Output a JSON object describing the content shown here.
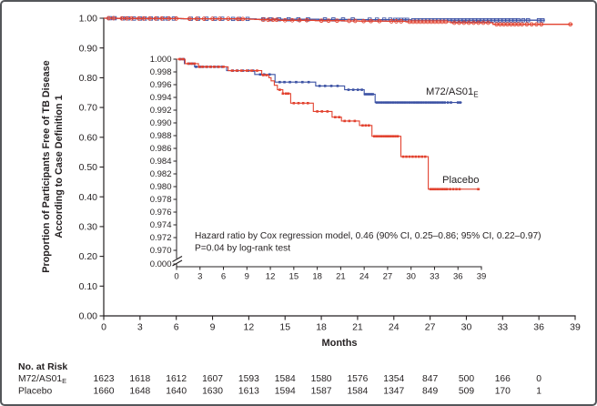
{
  "figure": {
    "y_axis_label_line1": "Proportion of Participants Free of TB Disease",
    "y_axis_label_line2": "According to Case Definition 1",
    "x_axis_label": "Months"
  },
  "annotation": {
    "line1": "Hazard ratio by Cox regression model, 0.46 (90% CI, 0.25–0.86; 95% CI, 0.22–0.97)",
    "line2": "P=0.04 by log-rank test"
  },
  "series_labels": {
    "vaccine": {
      "text": "M72/AS01",
      "sub": "E"
    },
    "placebo": {
      "text": "Placebo",
      "sub": ""
    }
  },
  "colors": {
    "vaccine": "#3c52a4",
    "placebo": "#e2422f",
    "axis": "#231f20"
  },
  "chart_data": {
    "type": "line",
    "subtype": "kaplan-meier-step",
    "x_label": "Months",
    "main_axis": {
      "x_ticks": [
        0,
        3,
        6,
        9,
        12,
        15,
        18,
        21,
        24,
        27,
        30,
        33,
        36,
        39
      ],
      "y_tick_labels": [
        "1.00",
        "0.90",
        "0.80",
        "0.70",
        "0.60",
        "0.50",
        "0.40",
        "0.30",
        "0.20",
        "0.10",
        "0.00"
      ],
      "xlim": [
        0,
        39
      ],
      "ylim": [
        0,
        1
      ]
    },
    "inset_axis": {
      "x_ticks": [
        0,
        3,
        6,
        9,
        12,
        15,
        18,
        21,
        24,
        27,
        30,
        33,
        36,
        39
      ],
      "y_tick_labels": [
        "1.000",
        "0.998",
        "0.996",
        "0.994",
        "0.992",
        "0.990",
        "0.988",
        "0.986",
        "0.984",
        "0.982",
        "0.980",
        "0.978",
        "0.976",
        "0.974",
        "0.972",
        "0.970"
      ],
      "y_break_label": "0.000",
      "xlim": [
        0,
        39
      ],
      "ylim": [
        0.97,
        1.0
      ],
      "axis_break": true
    },
    "series": [
      {
        "name": "M72/AS01E",
        "color_key": "vaccine",
        "start": [
          0,
          1.0
        ],
        "steps": [
          [
            1.0,
            0.9993
          ],
          [
            2.3,
            0.9988
          ],
          [
            6.4,
            0.9982
          ],
          [
            10.0,
            0.9976
          ],
          [
            12.6,
            0.9964
          ],
          [
            17.8,
            0.9958
          ],
          [
            21.5,
            0.9952
          ],
          [
            24.0,
            0.9945
          ],
          [
            25.4,
            0.9932
          ]
        ],
        "end_month": 36.5,
        "censor_months": [
          0.5,
          0.9,
          1.6,
          2.0,
          2.5,
          3.0,
          3.4,
          3.9,
          4.4,
          4.9,
          5.3,
          5.8,
          7.2,
          7.8,
          8.5,
          9.2,
          9.8,
          10.7,
          11.2,
          11.9,
          13.2,
          13.8,
          14.5,
          15.3,
          16.1,
          16.9,
          18.3,
          19.0,
          19.8,
          20.6,
          22.0,
          22.6,
          23.2,
          23.7,
          24.1,
          24.35,
          24.6,
          24.85,
          25.1,
          25.6,
          25.9,
          26.2,
          26.5,
          26.8,
          27.1,
          27.4,
          27.7,
          28.0,
          28.3,
          28.6,
          28.9,
          29.2,
          29.5,
          29.8,
          30.1,
          30.4,
          30.7,
          31.0,
          31.3,
          31.6,
          31.9,
          32.2,
          32.5,
          32.8,
          33.1,
          33.4,
          33.7,
          34.0,
          34.3,
          34.7,
          35.1,
          36.0,
          36.3
        ]
      },
      {
        "name": "Placebo",
        "color_key": "placebo",
        "start": [
          0,
          1.0
        ],
        "steps": [
          [
            1.1,
            0.9993
          ],
          [
            2.8,
            0.9988
          ],
          [
            6.6,
            0.9982
          ],
          [
            10.9,
            0.9975
          ],
          [
            11.8,
            0.9971
          ],
          [
            12.1,
            0.9966
          ],
          [
            12.5,
            0.9959
          ],
          [
            12.9,
            0.9952
          ],
          [
            13.6,
            0.9946
          ],
          [
            14.6,
            0.9931
          ],
          [
            17.5,
            0.9918
          ],
          [
            19.9,
            0.9909
          ],
          [
            21.1,
            0.9903
          ],
          [
            23.4,
            0.9896
          ],
          [
            25.0,
            0.9879
          ],
          [
            28.7,
            0.9847
          ],
          [
            32.2,
            0.9796
          ]
        ],
        "end_month": 38.8,
        "censor_months": [
          0.4,
          0.8,
          1.5,
          1.9,
          2.3,
          2.9,
          3.3,
          3.8,
          4.3,
          4.8,
          5.4,
          6.0,
          7.1,
          7.7,
          8.3,
          9.0,
          9.6,
          10.3,
          11.1,
          11.5,
          13.2,
          13.6,
          14.0,
          14.3,
          15.0,
          15.6,
          16.2,
          16.8,
          18.0,
          18.6,
          19.3,
          20.3,
          20.8,
          21.5,
          22.1,
          22.8,
          23.8,
          24.2,
          24.6,
          25.3,
          25.6,
          25.9,
          26.2,
          26.5,
          26.8,
          27.1,
          27.4,
          27.7,
          28.0,
          28.3,
          29.0,
          29.4,
          29.8,
          30.2,
          30.6,
          31.0,
          31.4,
          31.8,
          32.5,
          32.8,
          33.1,
          33.4,
          33.7,
          34.0,
          34.3,
          34.6,
          35.0,
          35.4,
          35.8,
          36.2,
          38.6
        ]
      }
    ]
  },
  "risk_table": {
    "title": "No. at Risk",
    "months": [
      0,
      3,
      6,
      9,
      12,
      15,
      18,
      21,
      24,
      27,
      30,
      33,
      36
    ],
    "rows": [
      {
        "label": {
          "text": "M72/AS01",
          "sub": "E"
        },
        "counts": [
          "1623",
          "1618",
          "1612",
          "1607",
          "1593",
          "1584",
          "1580",
          "1576",
          "1354",
          "847",
          "500",
          "166",
          "0"
        ]
      },
      {
        "label": {
          "text": "Placebo",
          "sub": ""
        },
        "counts": [
          "1660",
          "1648",
          "1640",
          "1630",
          "1613",
          "1594",
          "1587",
          "1584",
          "1347",
          "849",
          "509",
          "170",
          "1"
        ]
      }
    ]
  }
}
